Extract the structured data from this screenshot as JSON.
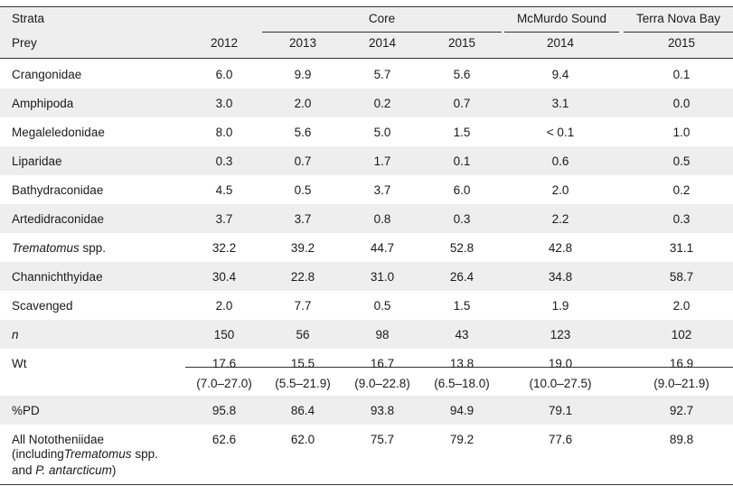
{
  "header": {
    "strata_label": "Strata",
    "prey_label": "Prey",
    "groups": [
      "Core",
      "McMurdo Sound",
      "Terra Nova Bay"
    ],
    "years": [
      "2012",
      "2013",
      "2014",
      "2015",
      "2014",
      "2015"
    ]
  },
  "rows": [
    {
      "label": "Crangonidae",
      "values": [
        "6.0",
        "9.9",
        "5.7",
        "5.6",
        "9.4",
        "0.1"
      ]
    },
    {
      "label": "Amphipoda",
      "values": [
        "3.0",
        "2.0",
        "0.2",
        "0.7",
        "3.1",
        "0.0"
      ]
    },
    {
      "label": "Megaleledonidae",
      "values": [
        "8.0",
        "5.6",
        "5.0",
        "1.5",
        "< 0.1",
        "1.0"
      ]
    },
    {
      "label": "Liparidae",
      "values": [
        "0.3",
        "0.7",
        "1.7",
        "0.1",
        "0.6",
        "0.5"
      ]
    },
    {
      "label": "Bathydraconidae",
      "values": [
        "4.5",
        "0.5",
        "3.7",
        "6.0",
        "2.0",
        "0.2"
      ]
    },
    {
      "label": "Artedidraconidae",
      "values": [
        "3.7",
        "3.7",
        "0.8",
        "0.3",
        "2.2",
        "0.3"
      ]
    },
    {
      "label_italic": "Trematomus",
      "label_rest": " spp.",
      "values": [
        "32.2",
        "39.2",
        "44.7",
        "52.8",
        "42.8",
        "31.1"
      ]
    },
    {
      "label": "Channichthyidae",
      "values": [
        "30.4",
        "22.8",
        "31.0",
        "26.4",
        "34.8",
        "58.7"
      ]
    },
    {
      "label": "Scavenged",
      "values": [
        "2.0",
        "7.7",
        "0.5",
        "1.5",
        "1.9",
        "2.0"
      ]
    },
    {
      "label_italic": "n",
      "values": [
        "150",
        "56",
        "98",
        "43",
        "123",
        "102"
      ]
    },
    {
      "label": "Wt",
      "values": [
        "17.6",
        "15.5",
        "16.7",
        "13.8",
        "19.0",
        "16.9"
      ],
      "ranges": [
        "(7.0–27.0)",
        "(5.5–21.9)",
        "(9.0–22.8)",
        "(6.5–18.0)",
        "(10.0–27.5)",
        "(9.0–21.9)"
      ]
    },
    {
      "label": "%PD",
      "values": [
        "95.8",
        "86.4",
        "93.8",
        "94.9",
        "79.1",
        "92.7"
      ]
    },
    {
      "label": "All Nototheniidae",
      "values": [
        "62.6",
        "62.0",
        "75.7",
        "79.2",
        "77.6",
        "89.8"
      ]
    }
  ],
  "footnote_label": {
    "line2_a": "(including",
    "line2_italic": "Trematomus",
    "line2_b": " spp.",
    "line3_a": "and ",
    "line3_italic": "P. antarcticum",
    "line3_b": ")"
  },
  "colors": {
    "shade": "#eeeeee",
    "rule": "#333333",
    "text": "#1a1a1a"
  }
}
